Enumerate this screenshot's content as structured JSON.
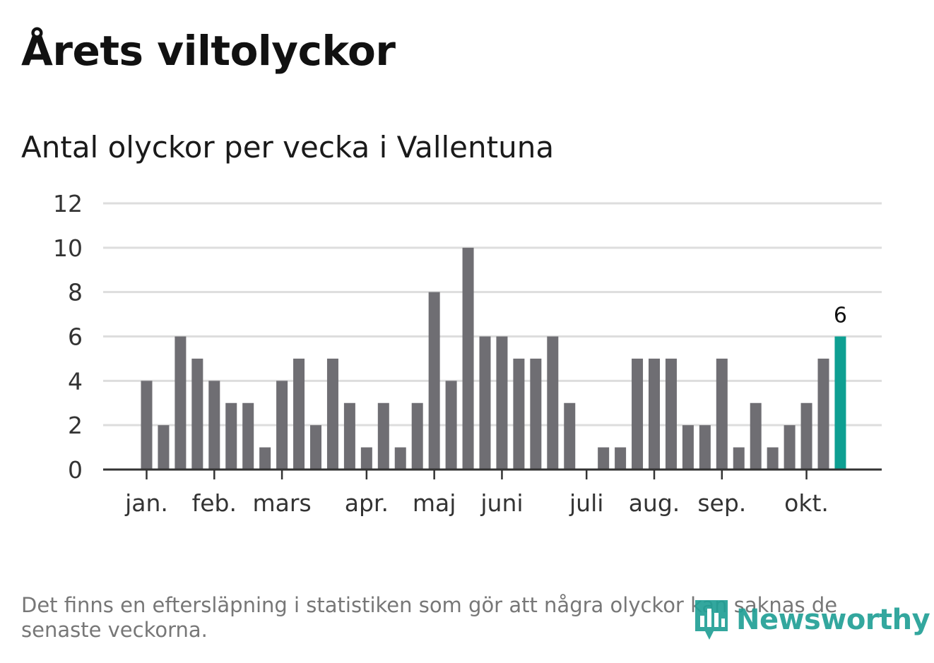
{
  "title": "Årets viltolyckor",
  "subtitle": "Antal olyckor per vecka i Vallentuna",
  "note": "Det finns en eftersläpning i statistiken som gör att några olyckor kan saknas de senaste veckorna.",
  "logo": {
    "text": "Newsworthy",
    "icon": "newsworthy-logo-icon"
  },
  "colors": {
    "bar": "#6f6e73",
    "highlight": "#0e9f92",
    "grid": "#dddddd",
    "axis": "#333333"
  },
  "chart_data": {
    "type": "bar",
    "title": "Årets viltolyckor",
    "subtitle": "Antal olyckor per vecka i Vallentuna",
    "xlabel": "",
    "ylabel": "",
    "ylim": [
      0,
      12
    ],
    "yticks": [
      0,
      2,
      4,
      6,
      8,
      10,
      12
    ],
    "grid": true,
    "values": [
      4,
      2,
      6,
      5,
      4,
      3,
      3,
      1,
      4,
      5,
      2,
      5,
      3,
      1,
      3,
      1,
      3,
      8,
      4,
      10,
      6,
      6,
      5,
      5,
      6,
      3,
      0,
      1,
      1,
      5,
      5,
      5,
      2,
      2,
      5,
      1,
      3,
      1,
      2,
      3,
      5,
      6
    ],
    "highlight_index": 41,
    "highlight_label": "6",
    "month_ticks": [
      {
        "label": "jan.",
        "week": 0
      },
      {
        "label": "feb.",
        "week": 4
      },
      {
        "label": "mars",
        "week": 8
      },
      {
        "label": "apr.",
        "week": 13
      },
      {
        "label": "maj",
        "week": 17
      },
      {
        "label": "juni",
        "week": 21
      },
      {
        "label": "juli",
        "week": 26
      },
      {
        "label": "aug.",
        "week": 30
      },
      {
        "label": "sep.",
        "week": 34
      },
      {
        "label": "okt.",
        "week": 39
      }
    ]
  }
}
